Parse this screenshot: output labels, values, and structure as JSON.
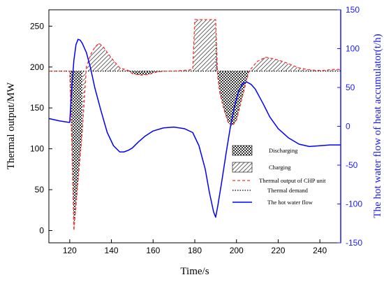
{
  "chart_data": {
    "type": "line",
    "xlabel": "Time/s",
    "ylabel_left": "Thermal output/MW",
    "ylabel_right": "The hot water flow of heat accumulator(t/h)",
    "xlim": [
      110,
      250
    ],
    "ylim_left": [
      -15,
      270
    ],
    "ylim_right": [
      -150,
      150
    ],
    "xticks": [
      120,
      140,
      160,
      180,
      200,
      220,
      240
    ],
    "yticks_left": [
      0,
      50,
      100,
      150,
      200,
      250
    ],
    "yticks_right": [
      -150,
      -100,
      -50,
      0,
      50,
      100,
      150
    ],
    "thermal_demand_MW": 195,
    "series": [
      {
        "name": "Thermal output of CHP unit",
        "axis": "left",
        "color": "#ff3333",
        "x": [
          110,
          120,
          121,
          122,
          124,
          126,
          128,
          130,
          132,
          134,
          136,
          140,
          144,
          148,
          150,
          154,
          158,
          162,
          166,
          170,
          175,
          179,
          180,
          181,
          189,
          190,
          191,
          192,
          194,
          196,
          198,
          200,
          202,
          204,
          206,
          208,
          210,
          214,
          218,
          222,
          226,
          230,
          234,
          238,
          242,
          246,
          250
        ],
        "y": [
          195,
          195,
          105,
          0,
          60,
          120,
          200,
          215,
          224,
          229,
          225,
          211,
          199,
          196,
          192,
          190,
          191,
          194,
          195,
          195,
          196,
          197,
          258,
          258,
          258,
          258,
          188,
          168,
          148,
          132,
          128,
          135,
          155,
          175,
          195,
          201,
          207,
          212,
          210,
          207,
          203,
          199,
          197,
          196,
          196,
          197,
          197
        ]
      },
      {
        "name": "Thermal demand",
        "axis": "left",
        "color": "#000000",
        "x": [
          110,
          250
        ],
        "y": [
          195,
          195
        ]
      },
      {
        "name": "The hot water flow",
        "axis": "right",
        "color": "#0000ff",
        "x": [
          110,
          115,
          120,
          121,
          122,
          123,
          124,
          125,
          126,
          128,
          130,
          132,
          135,
          138,
          141,
          144,
          146,
          148,
          150,
          153,
          156,
          160,
          165,
          170,
          175,
          179,
          182,
          185,
          187,
          189,
          190,
          191,
          193,
          195,
          197,
          199,
          201,
          203,
          205,
          207,
          209,
          211,
          213,
          216,
          220,
          225,
          230,
          235,
          240,
          245,
          250
        ],
        "y": [
          10,
          7,
          5,
          50,
          85,
          105,
          112,
          111,
          107,
          95,
          75,
          50,
          20,
          -8,
          -25,
          -33,
          -33,
          -31,
          -28,
          -20,
          -13,
          -6,
          -2,
          -1,
          -3,
          -8,
          -25,
          -55,
          -85,
          -110,
          -117,
          -103,
          -70,
          -35,
          -2,
          25,
          45,
          55,
          57,
          54,
          48,
          38,
          28,
          12,
          -3,
          -15,
          -23,
          -26,
          -25,
          -24,
          -24
        ]
      }
    ],
    "legend": {
      "placement": "lower-center",
      "items": [
        {
          "label": "Discharging",
          "style": "crosshatch"
        },
        {
          "label": "Charging",
          "style": "diagonal-hatch"
        },
        {
          "label": "Thermal output of CHP unit",
          "style": "red-dashed"
        },
        {
          "label": "Thermal demand",
          "style": "black-dotted"
        },
        {
          "label": "The hot water flow",
          "style": "blue-solid"
        }
      ]
    },
    "grid": false
  },
  "colors": {
    "left_axis": "#000000",
    "right_axis": "#1a1aff",
    "chp_line": "#ff3333",
    "water_flow": "#0000ff"
  }
}
